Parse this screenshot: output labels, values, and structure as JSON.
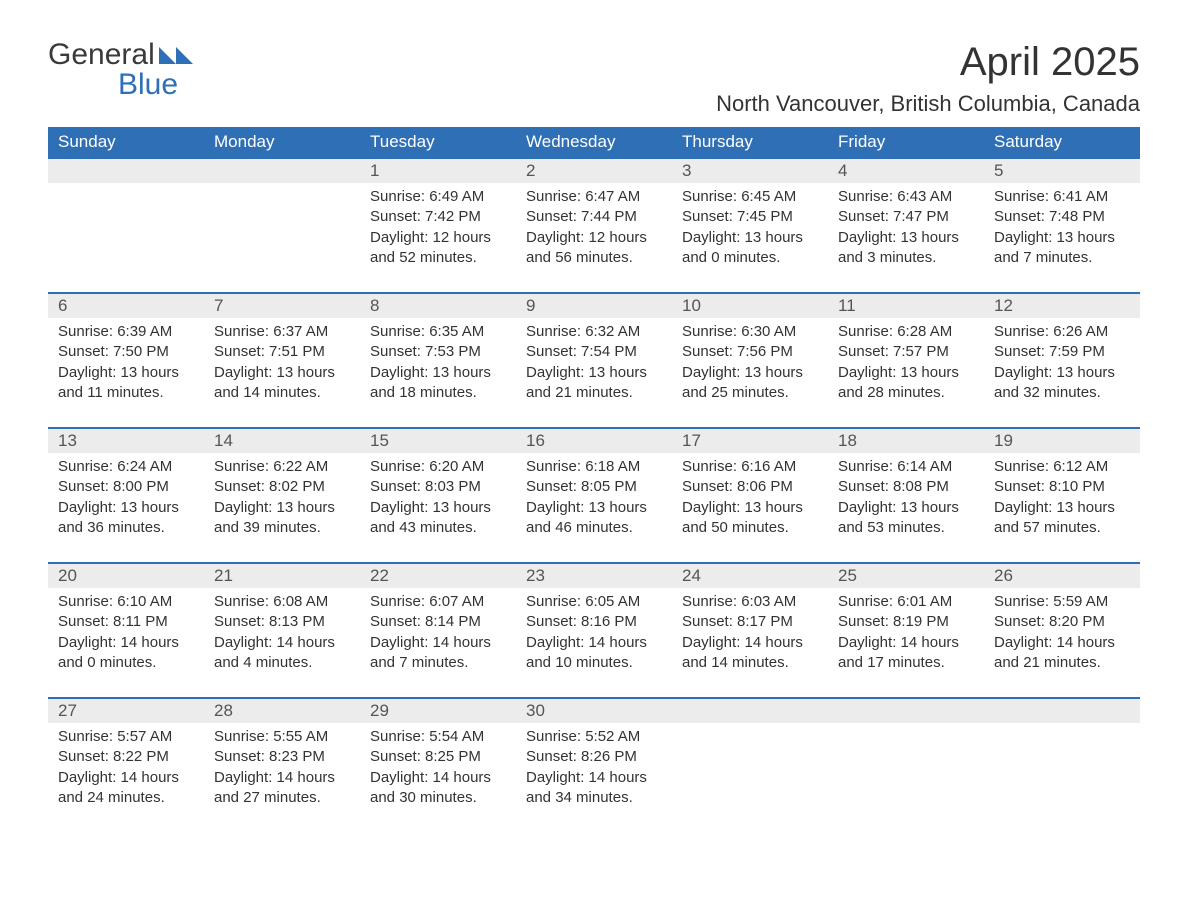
{
  "logo": {
    "line1": "General",
    "line2": "Blue",
    "icon_color": "#2e6fb5"
  },
  "title": "April 2025",
  "subtitle": "North Vancouver, British Columbia, Canada",
  "colors": {
    "header_bg": "#2e6fb5",
    "header_text": "#ffffff",
    "daynum_bg": "#ececec",
    "row_border": "#2e6fb5",
    "body_text": "#333333",
    "logo_text": "#3a3a3a",
    "logo_blue": "#2e6fb5",
    "page_bg": "#ffffff"
  },
  "typography": {
    "title_fontsize": 40,
    "subtitle_fontsize": 22,
    "header_fontsize": 17,
    "daynum_fontsize": 17,
    "body_fontsize": 15,
    "logo_fontsize": 30
  },
  "columns": [
    "Sunday",
    "Monday",
    "Tuesday",
    "Wednesday",
    "Thursday",
    "Friday",
    "Saturday"
  ],
  "weeks": [
    [
      null,
      null,
      {
        "n": "1",
        "sunrise": "Sunrise: 6:49 AM",
        "sunset": "Sunset: 7:42 PM",
        "day1": "Daylight: 12 hours",
        "day2": "and 52 minutes."
      },
      {
        "n": "2",
        "sunrise": "Sunrise: 6:47 AM",
        "sunset": "Sunset: 7:44 PM",
        "day1": "Daylight: 12 hours",
        "day2": "and 56 minutes."
      },
      {
        "n": "3",
        "sunrise": "Sunrise: 6:45 AM",
        "sunset": "Sunset: 7:45 PM",
        "day1": "Daylight: 13 hours",
        "day2": "and 0 minutes."
      },
      {
        "n": "4",
        "sunrise": "Sunrise: 6:43 AM",
        "sunset": "Sunset: 7:47 PM",
        "day1": "Daylight: 13 hours",
        "day2": "and 3 minutes."
      },
      {
        "n": "5",
        "sunrise": "Sunrise: 6:41 AM",
        "sunset": "Sunset: 7:48 PM",
        "day1": "Daylight: 13 hours",
        "day2": "and 7 minutes."
      }
    ],
    [
      {
        "n": "6",
        "sunrise": "Sunrise: 6:39 AM",
        "sunset": "Sunset: 7:50 PM",
        "day1": "Daylight: 13 hours",
        "day2": "and 11 minutes."
      },
      {
        "n": "7",
        "sunrise": "Sunrise: 6:37 AM",
        "sunset": "Sunset: 7:51 PM",
        "day1": "Daylight: 13 hours",
        "day2": "and 14 minutes."
      },
      {
        "n": "8",
        "sunrise": "Sunrise: 6:35 AM",
        "sunset": "Sunset: 7:53 PM",
        "day1": "Daylight: 13 hours",
        "day2": "and 18 minutes."
      },
      {
        "n": "9",
        "sunrise": "Sunrise: 6:32 AM",
        "sunset": "Sunset: 7:54 PM",
        "day1": "Daylight: 13 hours",
        "day2": "and 21 minutes."
      },
      {
        "n": "10",
        "sunrise": "Sunrise: 6:30 AM",
        "sunset": "Sunset: 7:56 PM",
        "day1": "Daylight: 13 hours",
        "day2": "and 25 minutes."
      },
      {
        "n": "11",
        "sunrise": "Sunrise: 6:28 AM",
        "sunset": "Sunset: 7:57 PM",
        "day1": "Daylight: 13 hours",
        "day2": "and 28 minutes."
      },
      {
        "n": "12",
        "sunrise": "Sunrise: 6:26 AM",
        "sunset": "Sunset: 7:59 PM",
        "day1": "Daylight: 13 hours",
        "day2": "and 32 minutes."
      }
    ],
    [
      {
        "n": "13",
        "sunrise": "Sunrise: 6:24 AM",
        "sunset": "Sunset: 8:00 PM",
        "day1": "Daylight: 13 hours",
        "day2": "and 36 minutes."
      },
      {
        "n": "14",
        "sunrise": "Sunrise: 6:22 AM",
        "sunset": "Sunset: 8:02 PM",
        "day1": "Daylight: 13 hours",
        "day2": "and 39 minutes."
      },
      {
        "n": "15",
        "sunrise": "Sunrise: 6:20 AM",
        "sunset": "Sunset: 8:03 PM",
        "day1": "Daylight: 13 hours",
        "day2": "and 43 minutes."
      },
      {
        "n": "16",
        "sunrise": "Sunrise: 6:18 AM",
        "sunset": "Sunset: 8:05 PM",
        "day1": "Daylight: 13 hours",
        "day2": "and 46 minutes."
      },
      {
        "n": "17",
        "sunrise": "Sunrise: 6:16 AM",
        "sunset": "Sunset: 8:06 PM",
        "day1": "Daylight: 13 hours",
        "day2": "and 50 minutes."
      },
      {
        "n": "18",
        "sunrise": "Sunrise: 6:14 AM",
        "sunset": "Sunset: 8:08 PM",
        "day1": "Daylight: 13 hours",
        "day2": "and 53 minutes."
      },
      {
        "n": "19",
        "sunrise": "Sunrise: 6:12 AM",
        "sunset": "Sunset: 8:10 PM",
        "day1": "Daylight: 13 hours",
        "day2": "and 57 minutes."
      }
    ],
    [
      {
        "n": "20",
        "sunrise": "Sunrise: 6:10 AM",
        "sunset": "Sunset: 8:11 PM",
        "day1": "Daylight: 14 hours",
        "day2": "and 0 minutes."
      },
      {
        "n": "21",
        "sunrise": "Sunrise: 6:08 AM",
        "sunset": "Sunset: 8:13 PM",
        "day1": "Daylight: 14 hours",
        "day2": "and 4 minutes."
      },
      {
        "n": "22",
        "sunrise": "Sunrise: 6:07 AM",
        "sunset": "Sunset: 8:14 PM",
        "day1": "Daylight: 14 hours",
        "day2": "and 7 minutes."
      },
      {
        "n": "23",
        "sunrise": "Sunrise: 6:05 AM",
        "sunset": "Sunset: 8:16 PM",
        "day1": "Daylight: 14 hours",
        "day2": "and 10 minutes."
      },
      {
        "n": "24",
        "sunrise": "Sunrise: 6:03 AM",
        "sunset": "Sunset: 8:17 PM",
        "day1": "Daylight: 14 hours",
        "day2": "and 14 minutes."
      },
      {
        "n": "25",
        "sunrise": "Sunrise: 6:01 AM",
        "sunset": "Sunset: 8:19 PM",
        "day1": "Daylight: 14 hours",
        "day2": "and 17 minutes."
      },
      {
        "n": "26",
        "sunrise": "Sunrise: 5:59 AM",
        "sunset": "Sunset: 8:20 PM",
        "day1": "Daylight: 14 hours",
        "day2": "and 21 minutes."
      }
    ],
    [
      {
        "n": "27",
        "sunrise": "Sunrise: 5:57 AM",
        "sunset": "Sunset: 8:22 PM",
        "day1": "Daylight: 14 hours",
        "day2": "and 24 minutes."
      },
      {
        "n": "28",
        "sunrise": "Sunrise: 5:55 AM",
        "sunset": "Sunset: 8:23 PM",
        "day1": "Daylight: 14 hours",
        "day2": "and 27 minutes."
      },
      {
        "n": "29",
        "sunrise": "Sunrise: 5:54 AM",
        "sunset": "Sunset: 8:25 PM",
        "day1": "Daylight: 14 hours",
        "day2": "and 30 minutes."
      },
      {
        "n": "30",
        "sunrise": "Sunrise: 5:52 AM",
        "sunset": "Sunset: 8:26 PM",
        "day1": "Daylight: 14 hours",
        "day2": "and 34 minutes."
      },
      null,
      null,
      null
    ]
  ]
}
